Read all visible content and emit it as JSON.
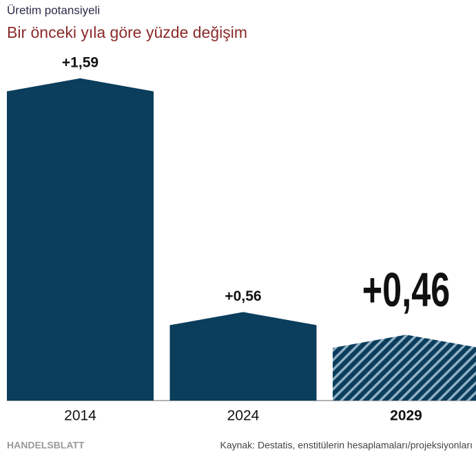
{
  "chart_data": {
    "type": "bar",
    "title": "Üretim potansiyeli",
    "subtitle": "Bir önceki yıla göre yüzde değişim",
    "categories": [
      "2014",
      "2024",
      "2029"
    ],
    "values": [
      1.59,
      0.56,
      0.46
    ],
    "value_labels": [
      "+1,59",
      "+0,56",
      "+0,46"
    ],
    "color": "#0b3d5c",
    "hatched": [
      false,
      false,
      true
    ],
    "ylim": [
      0.17,
      1.65
    ],
    "source": "Kaynak: Destatis, enstitülerin hesaplamaları/projeksiyonları",
    "brand": "HANDELSBLATT"
  }
}
